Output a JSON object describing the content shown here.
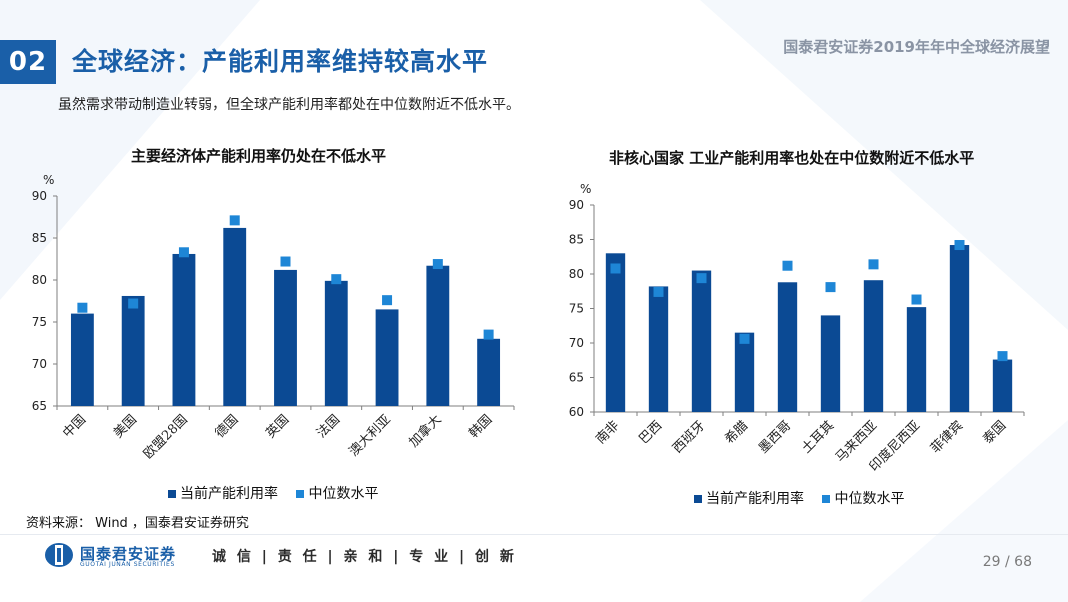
{
  "header": {
    "section_number": "02",
    "title": "全球经济：产能利用率维持较高水平",
    "report_name": "国泰君安证券2019年年中全球经济展望",
    "subtitle": "虽然需求带动制造业转弱，但全球产能利用率都处在中位数附近不低水平。"
  },
  "colors": {
    "brand": "#1a5fa8",
    "bar": "#0b4a94",
    "median": "#1e86d6",
    "axis": "#7f7f7f"
  },
  "chart_data": [
    {
      "type": "bar",
      "title": "主要经济体产能利用率仍处在不低水平",
      "ylabel": "%",
      "ylim": [
        65,
        90
      ],
      "yticks": [
        65,
        70,
        75,
        80,
        85,
        90
      ],
      "categories": [
        "中国",
        "美国",
        "欧盟28国",
        "德国",
        "英国",
        "法国",
        "澳大利亚",
        "加拿大",
        "韩国"
      ],
      "series": [
        {
          "name": "当前产能利用率",
          "kind": "bar",
          "color": "#0b4a94",
          "values": [
            76.0,
            78.1,
            83.1,
            86.2,
            81.2,
            79.9,
            76.5,
            81.7,
            73.0
          ]
        },
        {
          "name": "中位数水平",
          "kind": "marker",
          "color": "#1e86d6",
          "values": [
            76.7,
            77.2,
            83.3,
            87.1,
            82.2,
            80.1,
            77.6,
            81.9,
            73.5
          ]
        }
      ],
      "legend": "bottom"
    },
    {
      "type": "bar",
      "title": "非核心国家 工业产能利用率也处在中位数附近不低水平",
      "ylabel": "%",
      "ylim": [
        60,
        90
      ],
      "yticks": [
        60,
        65,
        70,
        75,
        80,
        85,
        90
      ],
      "categories": [
        "南非",
        "巴西",
        "西班牙",
        "希腊",
        "墨西哥",
        "土耳其",
        "马来西亚",
        "印度尼西亚",
        "菲律宾",
        "泰国"
      ],
      "series": [
        {
          "name": "当前产能利用率",
          "kind": "bar",
          "color": "#0b4a94",
          "values": [
            83.0,
            78.2,
            80.5,
            71.5,
            78.8,
            74.0,
            79.1,
            75.2,
            84.2,
            67.6
          ]
        },
        {
          "name": "中位数水平",
          "kind": "marker",
          "color": "#1e86d6",
          "values": [
            80.8,
            77.4,
            79.4,
            70.6,
            81.2,
            78.1,
            81.4,
            76.3,
            84.2,
            68.1
          ]
        }
      ],
      "legend": "bottom"
    }
  ],
  "legend_labels": {
    "bar": "当前产能利用率",
    "marker": "中位数水平"
  },
  "source": "资料来源： Wind ，国泰君安证券研究",
  "footer": {
    "logo_cn": "国泰君安证券",
    "logo_en": "GUOTAI JUNAN SECURITIES",
    "motto": "诚 信 | 责 任 | 亲 和 | 专 业 | 创 新",
    "page": "29 / 68"
  }
}
